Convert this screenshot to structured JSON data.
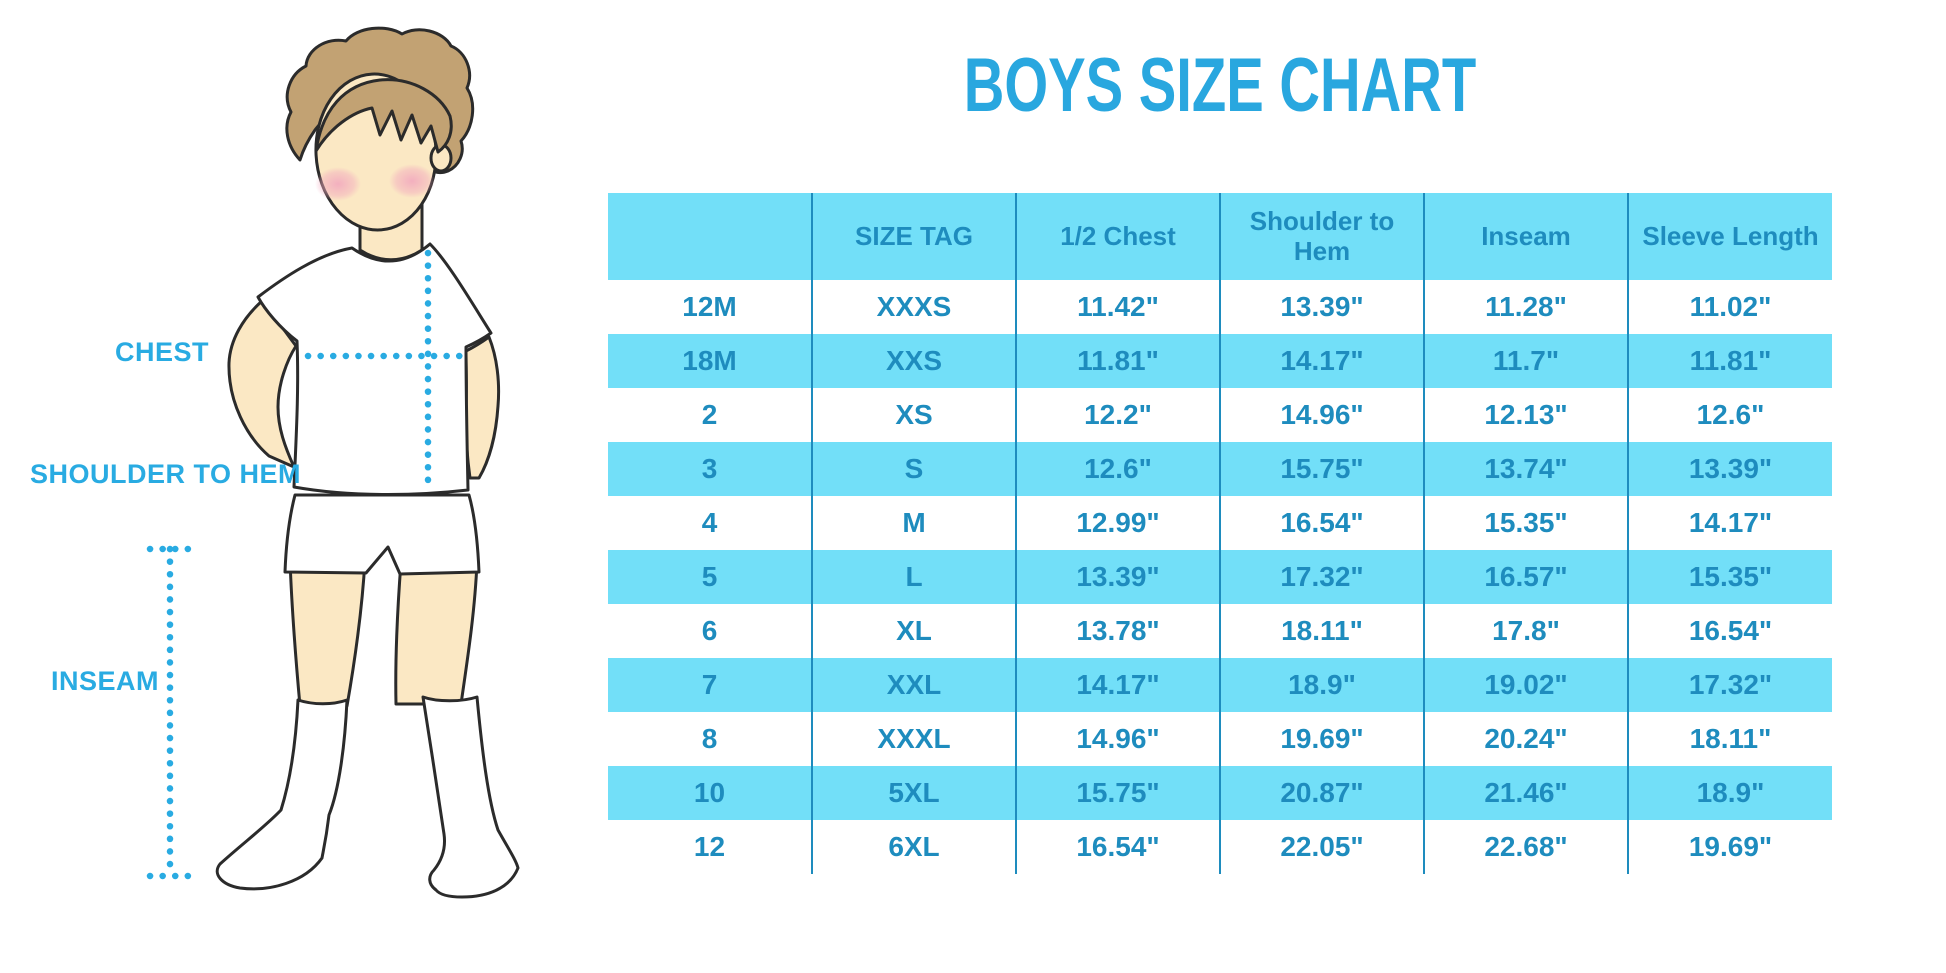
{
  "page": {
    "title": "BOYS SIZE CHART"
  },
  "figure": {
    "labels": {
      "chest": "CHEST",
      "shoulder_to_hem": "SHOULDER TO HEM",
      "inseam": "INSEAM"
    }
  },
  "chart_data": {
    "type": "table",
    "title": "BOYS SIZE CHART",
    "columns": [
      "",
      "SIZE TAG",
      "1/2 Chest",
      "Shoulder to Hem",
      "Inseam",
      "Sleeve Length"
    ],
    "rows": [
      [
        "12M",
        "XXXS",
        "11.42\"",
        "13.39\"",
        "11.28\"",
        "11.02\""
      ],
      [
        "18M",
        "XXS",
        "11.81\"",
        "14.17\"",
        "11.7\"",
        "11.81\""
      ],
      [
        "2",
        "XS",
        "12.2\"",
        "14.96\"",
        "12.13\"",
        "12.6\""
      ],
      [
        "3",
        "S",
        "12.6\"",
        "15.75\"",
        "13.74\"",
        "13.39\""
      ],
      [
        "4",
        "M",
        "12.99\"",
        "16.54\"",
        "15.35\"",
        "14.17\""
      ],
      [
        "5",
        "L",
        "13.39\"",
        "17.32\"",
        "16.57\"",
        "15.35\""
      ],
      [
        "6",
        "XL",
        "13.78\"",
        "18.11\"",
        "17.8\"",
        "16.54\""
      ],
      [
        "7",
        "XXL",
        "14.17\"",
        "18.9\"",
        "19.02\"",
        "17.32\""
      ],
      [
        "8",
        "XXXL",
        "14.96\"",
        "19.69\"",
        "20.24\"",
        "18.11\""
      ],
      [
        "10",
        "5XL",
        "15.75\"",
        "20.87\"",
        "21.46\"",
        "18.9\""
      ],
      [
        "12",
        "6XL",
        "16.54\"",
        "22.05\"",
        "22.68\"",
        "19.69\""
      ]
    ],
    "row_highlight_pattern": "alternating",
    "legend_position": "none",
    "grid": "vertical-dividers-only"
  },
  "colors": {
    "title_blue": "#29A7DF",
    "text_blue": "#1E8CBE",
    "cyan": "#72DFF8",
    "divider": "#1E8CBE",
    "dot_blue": "#29ABE2",
    "skin": "#FBE8C4",
    "hair": "#C2A273",
    "blush": "#F2A9BE"
  }
}
